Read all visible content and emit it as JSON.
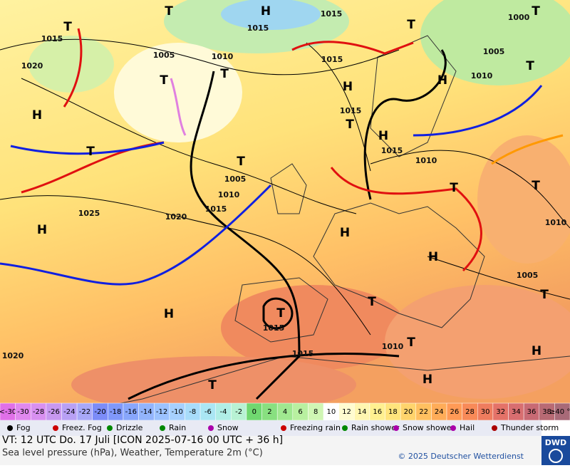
{
  "map": {
    "pressure_labels": [
      "1015",
      "1015",
      "1015",
      "1000",
      "1005",
      "1010",
      "1015",
      "1005",
      "1010",
      "1015",
      "1015",
      "1010",
      "1005",
      "1010",
      "1015",
      "1020",
      "1025",
      "1020",
      "1010",
      "1005",
      "1015",
      "1010",
      "1015",
      "1020"
    ],
    "pressure_centers": [
      "T",
      "H",
      "T",
      "T",
      "T",
      "T",
      "T",
      "H",
      "H",
      "T",
      "H",
      "T",
      "T",
      "T",
      "H",
      "T",
      "H",
      "H",
      "H",
      "T",
      "H",
      "T",
      "T",
      "T",
      "H",
      "H",
      "T",
      "T"
    ]
  },
  "temperature_scale": {
    "labels": [
      "<-30",
      "-30",
      "-28",
      "-26",
      "-24",
      "-22",
      "-20",
      "-18",
      "-16",
      "-14",
      "-12",
      "-10",
      "-8",
      "-6",
      "-4",
      "-2",
      "0",
      "2",
      "4",
      "6",
      "8",
      "10",
      "12",
      "14",
      "16",
      "18",
      "20",
      "22",
      "24",
      "26",
      "28",
      "30",
      "32",
      "34",
      "36",
      "38",
      "≥40 °C"
    ],
    "colors": [
      "#e070e8",
      "#e088ee",
      "#d890f0",
      "#c898f0",
      "#b8a0f4",
      "#a8a8f8",
      "#7c8cf8",
      "#8098fa",
      "#88a6fc",
      "#92b4fc",
      "#9cc2fe",
      "#a6d0fe",
      "#a8dcfa",
      "#aae6f4",
      "#b0eee6",
      "#b8f2d4",
      "#70d870",
      "#88e080",
      "#a0e890",
      "#b8f0a0",
      "#d0f6b4",
      "#ffffff",
      "#fffcd0",
      "#fff6b0",
      "#fff090",
      "#ffe47c",
      "#ffd46c",
      "#ffc060",
      "#ffac58",
      "#ff9a56",
      "#f88a58",
      "#ee7c5e",
      "#e47268",
      "#d86e70",
      "#c86a74",
      "#b86a74",
      "#a86a78"
    ]
  },
  "weather_legend": [
    "Fog",
    "Freez. Fog",
    "Drizzle",
    "Rain",
    "Snow",
    "Freezing rain",
    "Rain shower",
    "Snow shower",
    "Hail",
    "Thunder storm"
  ],
  "footer": {
    "valid_time": "VT: 12 UTC Do.  17 Juli [ICON 2025-07-16  00 UTC + 36 h]",
    "description": "Sea level pressure (hPa), Weather, Temperature 2m (°C)",
    "copyright": "© 2025 Deutscher Wetterdienst",
    "logo": "DWD"
  }
}
